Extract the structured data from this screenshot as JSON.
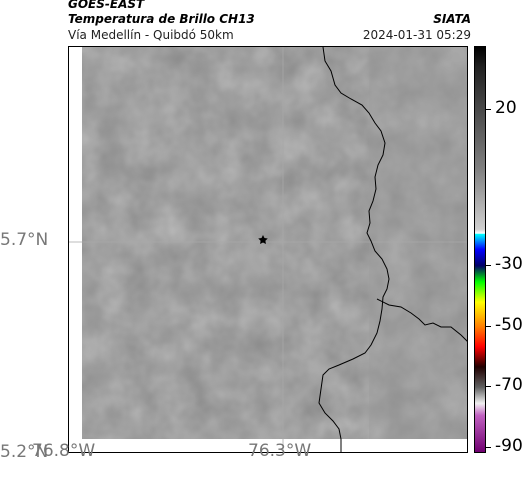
{
  "header": {
    "satellite": "GOES-EAST",
    "product": "Temperatura de Brillo CH13",
    "organization": "SIATA",
    "subtitle": "Vía Medellín - Quibdó 50km",
    "datetime": "2024-01-31 05:29"
  },
  "map": {
    "lat_labels": [
      "5.7°N",
      "5.2°N"
    ],
    "lon_labels": [
      "76.8°W",
      "76.3°W"
    ],
    "marker_icon": "star-icon",
    "field_color": "#8a8a8a",
    "border_color": "#000000",
    "gridline_color": "#b0b0b0"
  },
  "colorbar": {
    "tick_labels": [
      "20",
      "-30",
      "-50",
      "-70",
      "-90"
    ]
  }
}
